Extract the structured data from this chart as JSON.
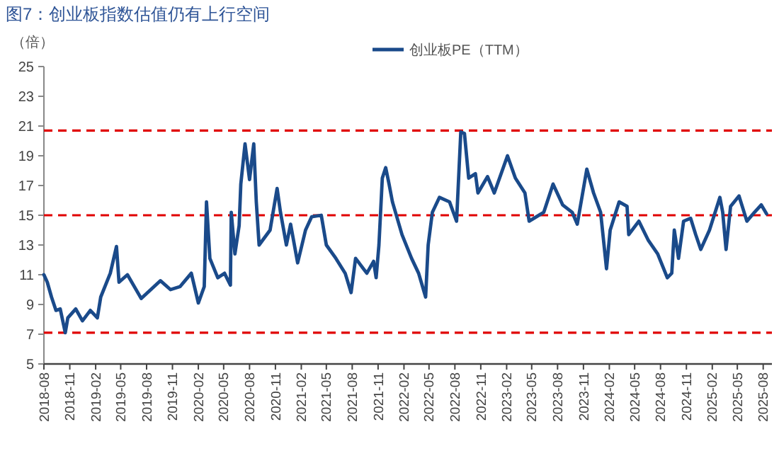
{
  "chart_data": {
    "type": "line",
    "title": "图7：创业板指数估值仍有上行空间",
    "ylabel": "（倍）",
    "legend": "top",
    "line_style": "solid",
    "marker": "none",
    "grid": false,
    "xlim": [
      "2018-08",
      "2025-09"
    ],
    "xticks": [
      "2018-08",
      "2018-11",
      "2019-02",
      "2019-05",
      "2019-08",
      "2019-11",
      "2020-02",
      "2020-05",
      "2020-08",
      "2020-11",
      "2021-02",
      "2021-05",
      "2021-08",
      "2021-11",
      "2022-02",
      "2022-05",
      "2022-08",
      "2022-11",
      "2023-02",
      "2023-05",
      "2023-08",
      "2023-11",
      "2024-02",
      "2024-05",
      "2024-08",
      "2024-11",
      "2025-02",
      "2025-05",
      "2025-08"
    ],
    "ylim": [
      5,
      25
    ],
    "yticks": [
      5,
      7,
      9,
      11,
      13,
      15,
      17,
      19,
      21,
      23,
      25
    ],
    "ref_lines": [
      {
        "axis": "y",
        "value": 20.7,
        "color": "#e00000",
        "line_style": "dashed"
      },
      {
        "axis": "y",
        "value": 15,
        "color": "#e00000",
        "line_style": "dashed"
      },
      {
        "axis": "y",
        "value": 7.1,
        "color": "#e00000",
        "line_style": "dashed"
      }
    ],
    "x": [
      "2018-08-01",
      "2018-08-13",
      "2018-08-28",
      "2018-09-13",
      "2018-09-28",
      "2018-10-16",
      "2018-10-25",
      "2018-11-22",
      "2018-12-16",
      "2019-01-13",
      "2019-02-07",
      "2019-02-19",
      "2019-03-25",
      "2019-04-16",
      "2019-04-25",
      "2019-05-25",
      "2019-07-13",
      "2019-09-19",
      "2019-10-25",
      "2019-11-28",
      "2020-01-07",
      "2020-02-01",
      "2020-02-22",
      "2020-03-01",
      "2020-03-13",
      "2020-04-10",
      "2020-05-04",
      "2020-05-25",
      "2020-05-28",
      "2020-06-10",
      "2020-06-25",
      "2020-07-01",
      "2020-07-16",
      "2020-08-01",
      "2020-08-16",
      "2020-08-25",
      "2020-09-04",
      "2020-10-13",
      "2020-11-07",
      "2020-11-19",
      "2020-12-10",
      "2020-12-25",
      "2021-01-19",
      "2021-02-16",
      "2021-03-10",
      "2021-04-13",
      "2021-05-01",
      "2021-06-04",
      "2021-07-07",
      "2021-07-28",
      "2021-08-13",
      "2021-09-22",
      "2021-10-16",
      "2021-10-25",
      "2021-11-04",
      "2021-11-16",
      "2021-11-28",
      "2021-12-10",
      "2021-12-22",
      "2022-01-25",
      "2022-02-28",
      "2022-03-25",
      "2022-04-19",
      "2022-04-28",
      "2022-05-13",
      "2022-06-07",
      "2022-07-13",
      "2022-08-07",
      "2022-08-22",
      "2022-09-04",
      "2022-09-19",
      "2022-10-13",
      "2022-10-22",
      "2022-11-25",
      "2022-12-19",
      "2023-02-04",
      "2023-03-04",
      "2023-04-07",
      "2023-04-22",
      "2023-06-13",
      "2023-07-16",
      "2023-08-19",
      "2023-09-22",
      "2023-10-10",
      "2023-11-13",
      "2023-12-07",
      "2024-01-01",
      "2024-01-22",
      "2024-02-04",
      "2024-03-07",
      "2024-04-04",
      "2024-04-10",
      "2024-05-16",
      "2024-06-19",
      "2024-07-22",
      "2024-08-25",
      "2024-09-10",
      "2024-09-19",
      "2024-10-04",
      "2024-10-22",
      "2024-11-16",
      "2024-12-04",
      "2024-12-22",
      "2025-01-22",
      "2025-02-28",
      "2025-03-10",
      "2025-03-22",
      "2025-04-07",
      "2025-05-07",
      "2025-06-04",
      "2025-07-01",
      "2025-07-25",
      "2025-08-13"
    ],
    "series": [
      {
        "name": "创业板PE（TTM）",
        "color": "#1a4a8a",
        "values": [
          11.0,
          10.5,
          9.5,
          8.6,
          8.7,
          7.1,
          8.1,
          8.7,
          7.9,
          8.6,
          8.1,
          9.5,
          11.1,
          12.9,
          10.5,
          11.0,
          9.4,
          10.6,
          10.0,
          10.2,
          11.1,
          9.1,
          10.2,
          15.9,
          12.1,
          10.8,
          11.1,
          10.3,
          15.2,
          12.4,
          14.3,
          17.1,
          19.8,
          17.4,
          19.8,
          15.9,
          13.0,
          14.0,
          16.8,
          15.2,
          13.0,
          14.4,
          11.8,
          14.0,
          14.9,
          15.0,
          13.0,
          12.1,
          11.1,
          9.8,
          12.1,
          11.1,
          11.9,
          10.8,
          13.0,
          17.5,
          18.2,
          17.1,
          15.9,
          13.7,
          12.1,
          11.1,
          9.5,
          13.0,
          15.2,
          16.2,
          15.9,
          14.6,
          20.6,
          20.5,
          17.5,
          17.8,
          16.5,
          17.6,
          16.5,
          19.0,
          17.5,
          16.5,
          14.6,
          15.2,
          17.1,
          15.7,
          15.2,
          14.4,
          18.1,
          16.5,
          15.2,
          11.4,
          14.0,
          15.9,
          15.6,
          13.7,
          14.6,
          13.3,
          12.4,
          10.8,
          11.1,
          14.0,
          12.1,
          14.6,
          14.8,
          13.7,
          12.7,
          14.0,
          16.2,
          15.2,
          12.7,
          15.6,
          16.3,
          14.6,
          15.2,
          15.7,
          15.1
        ]
      }
    ]
  }
}
